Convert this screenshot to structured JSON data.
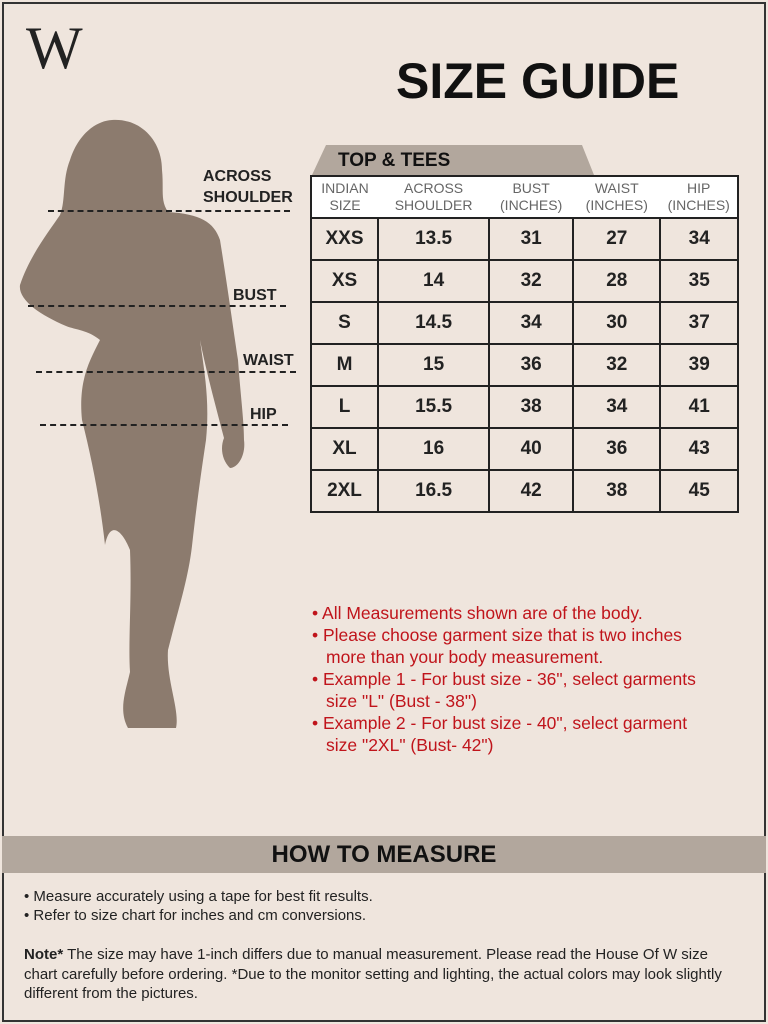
{
  "brand": {
    "logo": "W"
  },
  "title": "SIZE GUIDE",
  "figure": {
    "labels": {
      "shoulder": "ACROSS SHOULDER",
      "bust": "BUST",
      "waist": "WAIST",
      "hip": "HIP"
    },
    "silhouette_color": "#8c7b6e"
  },
  "table": {
    "tab": "TOP & TEES",
    "headers": [
      "INDIAN SIZE",
      "ACROSS SHOULDER",
      "BUST (INCHES)",
      "WAIST (INCHES)",
      "HIP (INCHES)"
    ],
    "rows": [
      [
        "XXS",
        "13.5",
        "31",
        "27",
        "34"
      ],
      [
        "XS",
        "14",
        "32",
        "28",
        "35"
      ],
      [
        "S",
        "14.5",
        "34",
        "30",
        "37"
      ],
      [
        "M",
        "15",
        "36",
        "32",
        "39"
      ],
      [
        "L",
        "15.5",
        "38",
        "34",
        "41"
      ],
      [
        "XL",
        "16",
        "40",
        "36",
        "43"
      ],
      [
        "2XL",
        "16.5",
        "42",
        "38",
        "45"
      ]
    ]
  },
  "notes": [
    "• All Measurements shown are of the body.",
    "• Please choose garment size that is two inches",
    "more than your body measurement.",
    "• Example 1 - For bust size - 36\", select garments",
    "size \"L\" (Bust - 38\")",
    "• Example 2 - For bust size - 40\", select garment",
    "size \"2XL\" (Bust- 42\")"
  ],
  "how_to": {
    "title": "HOW TO MEASURE",
    "items": [
      "• Measure accurately using a tape for best fit results.",
      "• Refer to size chart for inches and cm conversions."
    ],
    "note_label": "Note*",
    "note": " The size may have 1-inch differs due to manual measurement. Please read the House Of W size chart carefully before ordering. *Due to the monitor setting and lighting, the actual colors may look slightly different from the pictures."
  },
  "colors": {
    "background": "#efe5dd",
    "band": "#b2a79d",
    "notes": "#c0141b"
  }
}
